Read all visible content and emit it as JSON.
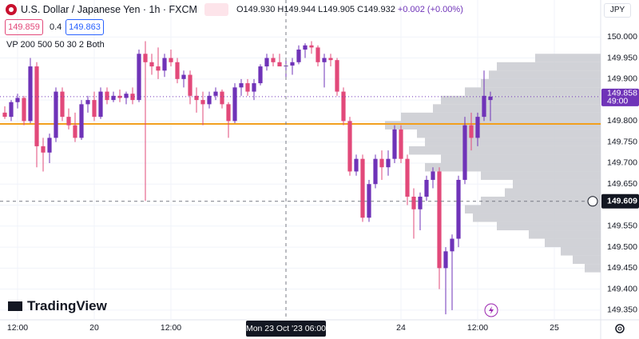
{
  "header": {
    "symbol": "U.S. Dollar / Japanese Yen · 1h · FXCM",
    "ohlc": [
      "O149.930",
      "H149.944",
      "L149.905",
      "C149.932"
    ],
    "change": "+0.002 (+0.00%)",
    "sell": "149.859",
    "spread": "0.4",
    "buy": "149.863",
    "indicator": "VP 200 500 50 30 2 Both"
  },
  "currency": "JPY",
  "logo": "TradingView",
  "chart_data": {
    "type": "candlestick",
    "categories": [
      null,
      null,
      "12:00",
      null,
      null,
      null,
      null,
      null,
      null,
      null,
      null,
      null,
      null,
      null,
      "20",
      null,
      null,
      null,
      null,
      null,
      null,
      null,
      null,
      null,
      null,
      null,
      "12:00",
      null,
      null,
      null,
      null,
      null,
      null,
      null,
      null,
      null,
      null,
      null,
      null,
      null,
      null,
      null,
      null,
      null,
      "Mon 23 Oct '23 06:00",
      null,
      null,
      null,
      null,
      null,
      null,
      null,
      null,
      null,
      null,
      null,
      null,
      null,
      null,
      null,
      null,
      null,
      "24",
      null,
      null,
      null,
      null,
      null,
      null,
      null,
      null,
      null,
      null,
      null,
      "12:00",
      null,
      null,
      null,
      null,
      null,
      null,
      null,
      null,
      null,
      null,
      null,
      "25",
      null,
      null,
      null,
      null,
      null,
      null
    ],
    "open": [
      149.82,
      149.81,
      149.845,
      149.855,
      149.8,
      149.93,
      149.74,
      149.725,
      149.76,
      149.87,
      149.81,
      149.79,
      149.76,
      149.84,
      149.85,
      149.81,
      149.87,
      149.85,
      149.86,
      149.855,
      149.865,
      149.85,
      149.96,
      149.94,
      149.93,
      149.92,
      149.95,
      149.94,
      149.9,
      149.91,
      149.86,
      149.85,
      149.84,
      149.86,
      149.87,
      149.84,
      149.8,
      149.88,
      149.89,
      149.87,
      149.89,
      149.93,
      149.95,
      149.94,
      149.93,
      149.932,
      149.94,
      149.97,
      149.98,
      149.975,
      149.94,
      149.95,
      149.945,
      149.87,
      149.8,
      149.68,
      149.71,
      149.57,
      149.65,
      149.71,
      149.69,
      149.71,
      149.78,
      149.71,
      149.62,
      149.59,
      149.62,
      149.66,
      149.68,
      149.45,
      149.49,
      149.52,
      149.66,
      149.79,
      149.76,
      149.81,
      149.85,
      null,
      null,
      null,
      null,
      null,
      null,
      null,
      null,
      null,
      null,
      null,
      null,
      null,
      null,
      null,
      null
    ],
    "high": [
      149.835,
      149.85,
      149.865,
      149.86,
      149.95,
      149.94,
      149.76,
      149.77,
      149.88,
      149.88,
      149.83,
      149.82,
      149.85,
      149.86,
      149.87,
      149.88,
      149.88,
      149.87,
      149.875,
      149.87,
      149.88,
      149.97,
      149.99,
      149.96,
      149.975,
      149.96,
      149.97,
      149.95,
      149.92,
      149.92,
      149.88,
      149.87,
      149.87,
      149.88,
      149.875,
      149.845,
      149.89,
      149.9,
      149.9,
      149.9,
      149.935,
      149.96,
      149.96,
      149.96,
      149.944,
      149.95,
      149.98,
      149.985,
      149.99,
      149.98,
      149.96,
      149.96,
      149.95,
      149.88,
      149.81,
      149.72,
      149.72,
      149.66,
      149.72,
      149.73,
      149.73,
      149.79,
      149.79,
      149.72,
      149.64,
      149.63,
      149.67,
      149.69,
      149.69,
      149.5,
      149.53,
      149.67,
      149.81,
      149.82,
      149.82,
      149.92,
      149.87,
      null,
      null,
      null,
      null,
      null,
      null,
      null,
      null,
      null,
      null,
      null,
      null,
      null,
      null,
      null,
      null
    ],
    "low": [
      149.805,
      149.8,
      149.83,
      149.79,
      149.795,
      149.69,
      149.68,
      149.7,
      149.75,
      149.8,
      149.78,
      149.75,
      149.755,
      149.82,
      149.8,
      149.805,
      149.84,
      149.845,
      149.845,
      149.84,
      149.84,
      149.845,
      149.61,
      149.91,
      149.9,
      149.905,
      149.93,
      149.89,
      149.88,
      149.84,
      149.82,
      149.79,
      149.83,
      149.85,
      149.83,
      149.76,
      149.795,
      149.86,
      149.86,
      149.85,
      149.885,
      149.92,
      149.93,
      149.93,
      149.905,
      149.91,
      149.935,
      149.95,
      149.96,
      149.93,
      149.88,
      149.93,
      149.86,
      149.79,
      149.67,
      149.67,
      149.56,
      149.56,
      149.64,
      149.66,
      149.67,
      149.7,
      149.7,
      149.6,
      149.52,
      149.54,
      149.61,
      149.64,
      149.4,
      149.34,
      149.35,
      149.5,
      149.65,
      149.73,
      149.74,
      149.8,
      149.8,
      null,
      null,
      null,
      null,
      null,
      null,
      null,
      null,
      null,
      null,
      null,
      null,
      null,
      null,
      null,
      null
    ],
    "close": [
      149.81,
      149.845,
      149.855,
      149.8,
      149.93,
      149.74,
      149.725,
      149.76,
      149.87,
      149.81,
      149.79,
      149.76,
      149.84,
      149.85,
      149.81,
      149.87,
      149.85,
      149.86,
      149.855,
      149.865,
      149.85,
      149.96,
      149.94,
      149.93,
      149.92,
      149.95,
      149.94,
      149.9,
      149.91,
      149.86,
      149.85,
      149.84,
      149.86,
      149.87,
      149.84,
      149.8,
      149.88,
      149.89,
      149.87,
      149.89,
      149.93,
      149.95,
      149.94,
      149.93,
      149.932,
      149.94,
      149.97,
      149.98,
      149.975,
      149.94,
      149.95,
      149.945,
      149.87,
      149.8,
      149.68,
      149.71,
      149.57,
      149.65,
      149.71,
      149.69,
      149.71,
      149.78,
      149.71,
      149.62,
      149.59,
      149.62,
      149.66,
      149.68,
      149.45,
      149.49,
      149.52,
      149.66,
      149.79,
      149.76,
      149.81,
      149.86,
      149.858,
      null,
      null,
      null,
      null,
      null,
      null,
      null,
      null,
      null,
      null,
      null,
      null,
      null,
      null,
      null,
      null
    ],
    "up_color": "#6f33b8",
    "down_color": "#e2497a",
    "ylim": [
      149.327,
      150.088
    ],
    "yticks": [
      {
        "value": 149.35,
        "label": "149.350"
      },
      {
        "value": 149.4,
        "label": "149.400"
      },
      {
        "value": 149.45,
        "label": "149.450"
      },
      {
        "value": 149.5,
        "label": "149.500"
      },
      {
        "value": 149.55,
        "label": "149.550"
      },
      {
        "value": 149.6,
        "label": "149.600"
      },
      {
        "value": 149.65,
        "label": "149.650"
      },
      {
        "value": 149.7,
        "label": "149.700"
      },
      {
        "value": 149.75,
        "label": "149.750"
      },
      {
        "value": 149.8,
        "label": "149.800"
      },
      {
        "value": 149.85,
        "label": "149.850"
      },
      {
        "value": 149.9,
        "label": "149.900"
      },
      {
        "value": 149.95,
        "label": "149.950"
      },
      {
        "value": 150.0,
        "label": "150.000"
      }
    ],
    "grid": true,
    "last_price": 149.858,
    "countdown": "49:00",
    "crosshair_price": 149.609,
    "crosshair_category": 44,
    "poc_price": 149.793,
    "poc_color": "#f2a01e",
    "volume_profile": {
      "color": "#c9cad0",
      "bin_size": 0.02,
      "prices": [
        149.95,
        149.93,
        149.91,
        149.89,
        149.87,
        149.85,
        149.83,
        149.81,
        149.79,
        149.77,
        149.75,
        149.73,
        149.71,
        149.69,
        149.67,
        149.65,
        149.63,
        149.61,
        149.59,
        149.57,
        149.55,
        149.53,
        149.51,
        149.49,
        149.47,
        149.45
      ],
      "volumes": [
        82,
        130,
        140,
        150,
        170,
        200,
        210,
        250,
        270,
        230,
        220,
        240,
        200,
        220,
        150,
        110,
        120,
        150,
        170,
        160,
        130,
        90,
        70,
        50,
        35,
        20
      ]
    }
  }
}
